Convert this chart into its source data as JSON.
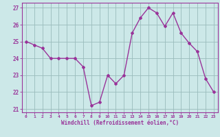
{
  "x": [
    0,
    1,
    2,
    3,
    4,
    5,
    6,
    7,
    8,
    9,
    10,
    11,
    12,
    13,
    14,
    15,
    16,
    17,
    18,
    19,
    20,
    21,
    22,
    23
  ],
  "y": [
    25.0,
    24.8,
    24.6,
    24.0,
    24.0,
    24.0,
    24.0,
    23.5,
    21.2,
    21.4,
    23.0,
    22.5,
    23.0,
    25.5,
    26.4,
    27.0,
    26.7,
    25.9,
    26.7,
    25.5,
    24.9,
    24.4,
    22.8,
    22.0
  ],
  "line_color": "#993399",
  "marker": "D",
  "marker_size": 2.0,
  "line_width": 1.0,
  "background_color": "#cce8e8",
  "grid_color": "#99bbbb",
  "xlabel": "Windchill (Refroidissement éolien,°C)",
  "xlabel_color": "#993399",
  "tick_label_color": "#993399",
  "ylim": [
    20.8,
    27.3
  ],
  "xlim": [
    -0.5,
    23.5
  ],
  "yticks": [
    21,
    22,
    23,
    24,
    25,
    26,
    27
  ],
  "xticks": [
    0,
    1,
    2,
    3,
    4,
    5,
    6,
    7,
    8,
    9,
    10,
    11,
    12,
    13,
    14,
    15,
    16,
    17,
    18,
    19,
    20,
    21,
    22,
    23
  ],
  "xtick_labels": [
    "0",
    "1",
    "2",
    "3",
    "4",
    "5",
    "6",
    "7",
    "8",
    "9",
    "10",
    "11",
    "12",
    "13",
    "14",
    "15",
    "16",
    "17",
    "18",
    "19",
    "20",
    "21",
    "22",
    "23"
  ],
  "spine_color": "#993399",
  "tick_color": "#993399"
}
